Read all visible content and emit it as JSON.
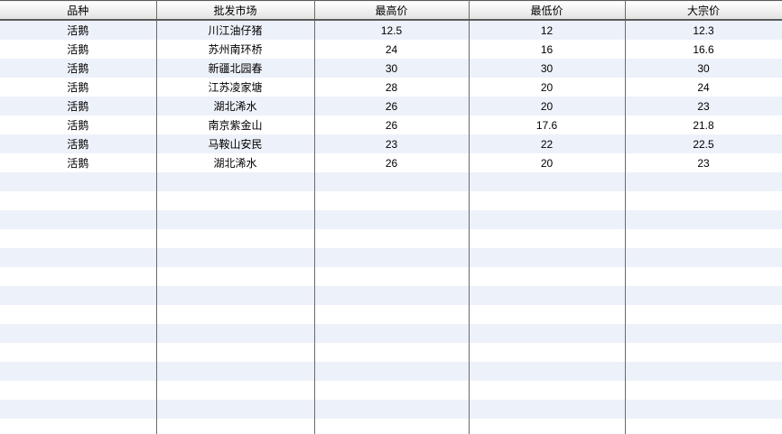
{
  "table": {
    "columns": [
      {
        "key": "variety",
        "label": "品种"
      },
      {
        "key": "market",
        "label": "批发市场"
      },
      {
        "key": "high",
        "label": "最高价"
      },
      {
        "key": "low",
        "label": "最低价"
      },
      {
        "key": "bulk",
        "label": "大宗价"
      }
    ],
    "rows": [
      [
        "活鹅",
        "川江油仔猪",
        "12.5",
        "12",
        "12.3"
      ],
      [
        "活鹅",
        "苏州南环桥",
        "24",
        "16",
        "16.6"
      ],
      [
        "活鹅",
        "新疆北园春",
        "30",
        "30",
        "30"
      ],
      [
        "活鹅",
        "江苏凌家塘",
        "28",
        "20",
        "24"
      ],
      [
        "活鹅",
        "湖北浠水",
        "26",
        "20",
        "23"
      ],
      [
        "活鹅",
        "南京紫金山",
        "26",
        "17.6",
        "21.8"
      ],
      [
        "活鹅",
        "马鞍山安民",
        "23",
        "22",
        "22.5"
      ],
      [
        "活鹅",
        "湖北浠水",
        "26",
        "20",
        "23"
      ]
    ],
    "empty_row_count": 14
  },
  "colors": {
    "stripe": "#edf1f9",
    "row_white": "#ffffff",
    "grid_line": "#6b6b6b",
    "header_border": "#5a5a5a",
    "header_gradient_top": "#ffffff",
    "header_gradient_bottom": "#e2e2e2",
    "text": "#000000"
  }
}
